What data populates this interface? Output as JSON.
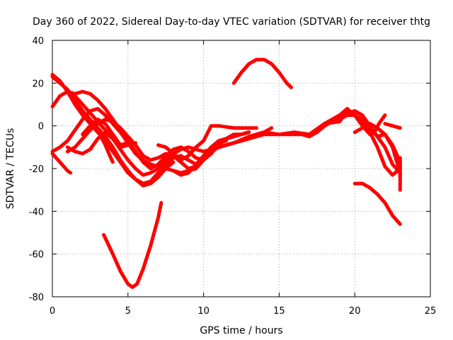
{
  "chart_data": {
    "type": "line",
    "title": "Day 360 of 2022, Sidereal Day-to-day VTEC variation (SDTVAR) for receiver thtg",
    "xlabel": "GPS time / hours",
    "ylabel": "SDTVAR / TECUs",
    "xlim": [
      0,
      25
    ],
    "ylim": [
      -80,
      40
    ],
    "xticks": [
      0,
      5,
      10,
      15,
      20,
      25
    ],
    "yticks": [
      -80,
      -60,
      -40,
      -20,
      0,
      20,
      40
    ],
    "grid": true,
    "color": "#ff0000",
    "series": [
      {
        "name": "s1",
        "points": [
          [
            0,
            24
          ],
          [
            0.5,
            21
          ],
          [
            1,
            16
          ],
          [
            1.5,
            10
          ],
          [
            2,
            5
          ],
          [
            2.5,
            1
          ],
          [
            3,
            -3
          ],
          [
            3.5,
            -7
          ],
          [
            4,
            -12
          ],
          [
            4.5,
            -17
          ],
          [
            5,
            -22
          ],
          [
            5.5,
            -25
          ],
          [
            6,
            -27
          ],
          [
            6.5,
            -26
          ],
          [
            7,
            -22
          ],
          [
            7.5,
            -18
          ],
          [
            8,
            -15
          ],
          [
            8.5,
            -14
          ],
          [
            9,
            -16
          ],
          [
            9.5,
            -18
          ],
          [
            10,
            -14
          ],
          [
            10.5,
            -10
          ],
          [
            11,
            -7
          ],
          [
            12,
            -5
          ],
          [
            13,
            -3
          ]
        ]
      },
      {
        "name": "s2",
        "points": [
          [
            0,
            23
          ],
          [
            0.5,
            20
          ],
          [
            1,
            17
          ],
          [
            1.5,
            12
          ],
          [
            2,
            7
          ],
          [
            2.5,
            3
          ],
          [
            3,
            -1
          ],
          [
            3.5,
            -5
          ],
          [
            4,
            -10
          ],
          [
            4.5,
            -16
          ],
          [
            5,
            -21
          ],
          [
            5.5,
            -25
          ],
          [
            6,
            -28
          ],
          [
            6.5,
            -27
          ],
          [
            7,
            -24
          ],
          [
            7.5,
            -20
          ],
          [
            8,
            -17
          ]
        ]
      },
      {
        "name": "s3",
        "points": [
          [
            0,
            9
          ],
          [
            0.5,
            14
          ],
          [
            1,
            16
          ],
          [
            1.5,
            14
          ],
          [
            2,
            10
          ],
          [
            2.5,
            6
          ],
          [
            3,
            2
          ],
          [
            3.5,
            -2
          ],
          [
            4,
            -6
          ],
          [
            4.5,
            -11
          ],
          [
            5,
            -16
          ],
          [
            5.5,
            -20
          ],
          [
            6,
            -23
          ],
          [
            6.5,
            -22
          ],
          [
            7,
            -20
          ],
          [
            7.5,
            -16
          ],
          [
            8,
            -13
          ],
          [
            8.5,
            -11
          ],
          [
            9,
            -10
          ],
          [
            9.5,
            -11
          ],
          [
            10,
            -12
          ],
          [
            11,
            -10
          ],
          [
            12,
            -8
          ]
        ]
      },
      {
        "name": "s4",
        "points": [
          [
            1,
            16
          ],
          [
            1.5,
            15
          ],
          [
            2,
            16
          ],
          [
            2.5,
            15
          ],
          [
            3,
            12
          ],
          [
            3.5,
            8
          ],
          [
            4,
            3
          ],
          [
            4.5,
            -2
          ],
          [
            5,
            -7
          ],
          [
            5.5,
            -12
          ],
          [
            6,
            -17
          ],
          [
            6.5,
            -20
          ],
          [
            7,
            -18
          ],
          [
            7.5,
            -14
          ],
          [
            8,
            -11
          ],
          [
            8.5,
            -10
          ],
          [
            9,
            -12
          ],
          [
            9.5,
            -15
          ],
          [
            10,
            -16
          ],
          [
            10.5,
            -13
          ],
          [
            11,
            -9
          ],
          [
            11.5,
            -6
          ],
          [
            12,
            -4
          ],
          [
            12.5,
            -4
          ],
          [
            13,
            -3
          ]
        ]
      },
      {
        "name": "s5",
        "points": [
          [
            0,
            -12
          ],
          [
            0.5,
            -10
          ],
          [
            1,
            -7
          ],
          [
            1.5,
            -2
          ],
          [
            2,
            3
          ],
          [
            2.5,
            7
          ],
          [
            3,
            8
          ],
          [
            3.5,
            5
          ],
          [
            4,
            1
          ],
          [
            4.5,
            -3
          ],
          [
            5,
            -8
          ],
          [
            5.5,
            -13
          ],
          [
            6,
            -16
          ],
          [
            6.5,
            -18
          ],
          [
            7,
            -19
          ],
          [
            7.5,
            -20
          ],
          [
            8,
            -21
          ],
          [
            8.5,
            -22
          ],
          [
            9,
            -21
          ],
          [
            9.5,
            -20
          ],
          [
            10,
            -16
          ],
          [
            10.5,
            -12
          ],
          [
            11,
            -8
          ],
          [
            11.5,
            -6
          ],
          [
            12,
            -5
          ]
        ]
      },
      {
        "name": "s6",
        "points": [
          [
            0,
            -13
          ],
          [
            0.5,
            -17
          ],
          [
            1,
            -21
          ],
          [
            1.2,
            -22
          ]
        ]
      },
      {
        "name": "s7",
        "points": [
          [
            1,
            -12
          ],
          [
            1.5,
            -10
          ],
          [
            2,
            -6
          ],
          [
            2.5,
            -2
          ],
          [
            3,
            1
          ],
          [
            3.5,
            3
          ],
          [
            4,
            2
          ],
          [
            4.5,
            -1
          ],
          [
            5,
            -5
          ],
          [
            5.5,
            -9
          ],
          [
            6,
            -14
          ],
          [
            6.5,
            -16
          ],
          [
            7,
            -15
          ],
          [
            7.5,
            -13
          ],
          [
            8,
            -14
          ],
          [
            8.5,
            -17
          ],
          [
            9,
            -20
          ],
          [
            9.5,
            -19
          ],
          [
            10,
            -15
          ],
          [
            10.5,
            -11
          ],
          [
            11,
            -8
          ],
          [
            11.5,
            -7
          ]
        ]
      },
      {
        "name": "s8",
        "points": [
          [
            1,
            -10
          ],
          [
            1.5,
            -12
          ],
          [
            2,
            -13
          ],
          [
            2.5,
            -11
          ],
          [
            3,
            -6
          ],
          [
            3.5,
            -3
          ],
          [
            4,
            -6
          ],
          [
            4.5,
            -10
          ],
          [
            5,
            -9
          ],
          [
            5.5,
            -8
          ]
        ]
      },
      {
        "name": "s9",
        "points": [
          [
            2,
            -4
          ],
          [
            2.5,
            0
          ],
          [
            3,
            3
          ],
          [
            3.5,
            1
          ],
          [
            4,
            -4
          ],
          [
            4.5,
            -9
          ],
          [
            5,
            -8
          ]
        ]
      },
      {
        "name": "s10",
        "points": [
          [
            3,
            -2
          ],
          [
            3.5,
            -9
          ],
          [
            3.8,
            -14
          ],
          [
            4,
            -17
          ]
        ]
      },
      {
        "name": "s11",
        "points": [
          [
            7,
            -9
          ],
          [
            7.5,
            -10
          ],
          [
            8,
            -13
          ],
          [
            8.5,
            -16
          ],
          [
            9,
            -14
          ],
          [
            9.5,
            -10
          ],
          [
            10,
            -7
          ],
          [
            10.5,
            0
          ],
          [
            11,
            0
          ],
          [
            12,
            -1
          ],
          [
            13,
            -1
          ],
          [
            13.5,
            -1
          ]
        ]
      },
      {
        "name": "s12",
        "points": [
          [
            8,
            -21
          ],
          [
            8.5,
            -23
          ],
          [
            9,
            -22
          ],
          [
            9.5,
            -18
          ],
          [
            10,
            -15
          ],
          [
            10.5,
            -12
          ],
          [
            11,
            -10
          ],
          [
            12,
            -8
          ],
          [
            13,
            -5
          ],
          [
            14,
            -3
          ],
          [
            14.5,
            -1
          ]
        ]
      },
      {
        "name": "s13",
        "points": [
          [
            11,
            -10
          ],
          [
            12,
            -8
          ],
          [
            13,
            -6
          ],
          [
            14,
            -4
          ],
          [
            15,
            -4
          ],
          [
            16,
            -4
          ],
          [
            16.5,
            -4
          ],
          [
            17,
            -5
          ],
          [
            17.5,
            -3
          ],
          [
            18,
            0
          ],
          [
            18.5,
            2
          ],
          [
            19,
            3
          ],
          [
            19.5,
            5
          ],
          [
            20,
            5
          ],
          [
            20.5,
            3
          ],
          [
            21,
            -1
          ],
          [
            21.5,
            -5
          ],
          [
            22,
            -10
          ],
          [
            22.5,
            -18
          ],
          [
            23,
            -22
          ]
        ]
      },
      {
        "name": "s14",
        "points": [
          [
            13,
            -5
          ],
          [
            14,
            -3
          ],
          [
            15,
            -4
          ],
          [
            16,
            -3
          ],
          [
            17,
            -4
          ],
          [
            18,
            1
          ],
          [
            19,
            2
          ],
          [
            19.5,
            7
          ],
          [
            20,
            5
          ],
          [
            20.5,
            2
          ],
          [
            21,
            -3
          ],
          [
            21.5,
            -10
          ],
          [
            22,
            -19
          ],
          [
            22.5,
            -23
          ],
          [
            23,
            -20
          ],
          [
            23,
            -15
          ]
        ]
      },
      {
        "name": "s15",
        "points": [
          [
            17.5,
            -3
          ],
          [
            18,
            0
          ],
          [
            18.5,
            2
          ],
          [
            19,
            4
          ],
          [
            19.5,
            6
          ],
          [
            20,
            7
          ],
          [
            20.5,
            5
          ],
          [
            21,
            0
          ],
          [
            21.5,
            -5
          ],
          [
            22,
            -4
          ],
          [
            22.5,
            -9
          ],
          [
            23,
            -17
          ],
          [
            23,
            -23
          ]
        ]
      },
      {
        "name": "s16",
        "points": [
          [
            18,
            1
          ],
          [
            18.5,
            3
          ],
          [
            19,
            5
          ],
          [
            19.5,
            8
          ],
          [
            20,
            5
          ],
          [
            20.5,
            0
          ],
          [
            21,
            -4
          ],
          [
            21.3,
            -3
          ],
          [
            21.6,
            1
          ],
          [
            22,
            5
          ]
        ]
      },
      {
        "name": "s17",
        "points": [
          [
            20,
            -3
          ],
          [
            20.5,
            -1
          ],
          [
            21,
            1
          ],
          [
            21.5,
            -1
          ],
          [
            22,
            -4
          ],
          [
            22.5,
            -10
          ],
          [
            23,
            -22
          ],
          [
            23,
            -30
          ]
        ]
      },
      {
        "name": "s18",
        "points": [
          [
            22,
            1
          ],
          [
            22.5,
            0
          ],
          [
            23,
            -1
          ]
        ]
      },
      {
        "name": "s19",
        "points": [
          [
            3.4,
            -51
          ],
          [
            4,
            -60
          ],
          [
            4.5,
            -68
          ],
          [
            5,
            -74
          ],
          [
            5.3,
            -75.5
          ],
          [
            5.6,
            -74
          ],
          [
            6,
            -67
          ],
          [
            6.5,
            -56
          ],
          [
            7,
            -43
          ],
          [
            7.2,
            -36
          ]
        ]
      },
      {
        "name": "s20",
        "points": [
          [
            12,
            20
          ],
          [
            12.5,
            25
          ],
          [
            13,
            29
          ],
          [
            13.5,
            31
          ],
          [
            14,
            31
          ],
          [
            14.5,
            29
          ],
          [
            15,
            25
          ],
          [
            15.5,
            20
          ],
          [
            15.8,
            18
          ]
        ]
      },
      {
        "name": "s21",
        "points": [
          [
            20,
            -27
          ],
          [
            20.5,
            -27
          ],
          [
            21,
            -29
          ],
          [
            21.5,
            -32
          ],
          [
            22,
            -36
          ],
          [
            22.5,
            -42
          ],
          [
            23,
            -46
          ]
        ]
      }
    ]
  }
}
